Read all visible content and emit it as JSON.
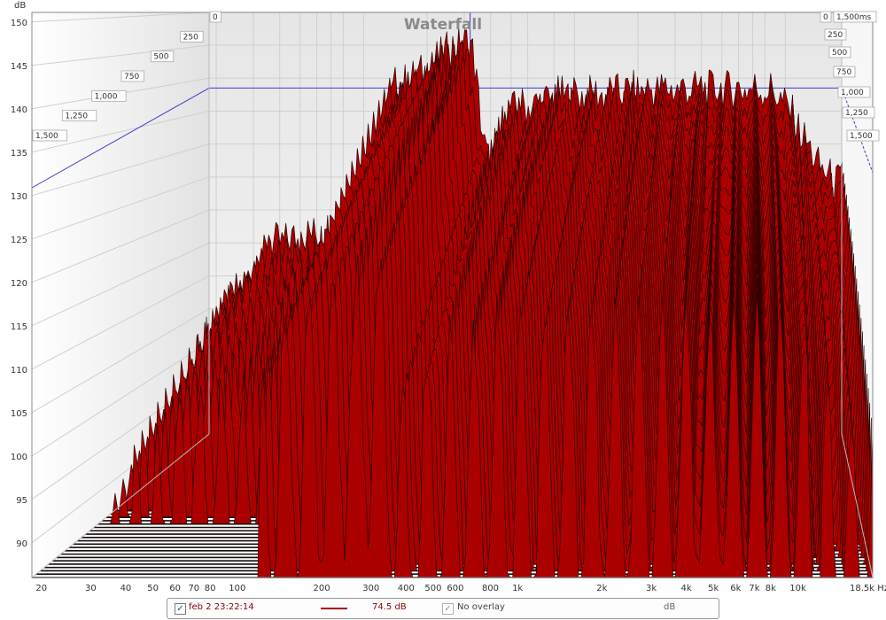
{
  "chart_data": {
    "type": "area",
    "title": "Waterfall",
    "ylabel": "dB",
    "xlabel": "",
    "y_ticks": [
      "150",
      "145",
      "140",
      "135",
      "130",
      "125",
      "120",
      "115",
      "110",
      "105",
      "100",
      "95",
      "90"
    ],
    "ylim": [
      86,
      150
    ],
    "x_ticks": [
      "20",
      "30",
      "40",
      "50",
      "60",
      "70",
      "80",
      "100",
      "200",
      "300",
      "400",
      "500",
      "600",
      "800",
      "1k",
      "2k",
      "3k",
      "4k",
      "5k",
      "6k",
      "7k",
      "8k",
      "10k"
    ],
    "x_unit_label": "18.5k Hz",
    "x_scale": "log",
    "xlim_hz": [
      18.5,
      18500
    ],
    "time_ticks_left": [
      "0",
      "250",
      "500",
      "750",
      "1,000",
      "1,250",
      "1,500"
    ],
    "time_ticks_right": [
      "0",
      "1,500ms",
      "250",
      "500",
      "750",
      "1,000",
      "1,250",
      "1,500"
    ],
    "time_range_ms": [
      0,
      1500
    ],
    "front_slice_peaks": [
      {
        "hz": 100,
        "db": 119
      },
      {
        "hz": 150,
        "db": 140
      },
      {
        "hz": 320,
        "db": 146
      },
      {
        "hz": 400,
        "db": 128
      },
      {
        "hz": 500,
        "db": 136
      },
      {
        "hz": 1000,
        "db": 138
      },
      {
        "hz": 3000,
        "db": 139
      },
      {
        "hz": 8000,
        "db": 139
      },
      {
        "hz": 18000,
        "db": 125
      }
    ],
    "fill_color": "#aa0000",
    "grid": true
  },
  "legend": {
    "series_checked": "✓",
    "series_name": "feb 2 23:22:14",
    "series_value": "74.5 dB",
    "overlay_checked": "✓",
    "overlay_label": "No overlay",
    "unit": "dB"
  }
}
